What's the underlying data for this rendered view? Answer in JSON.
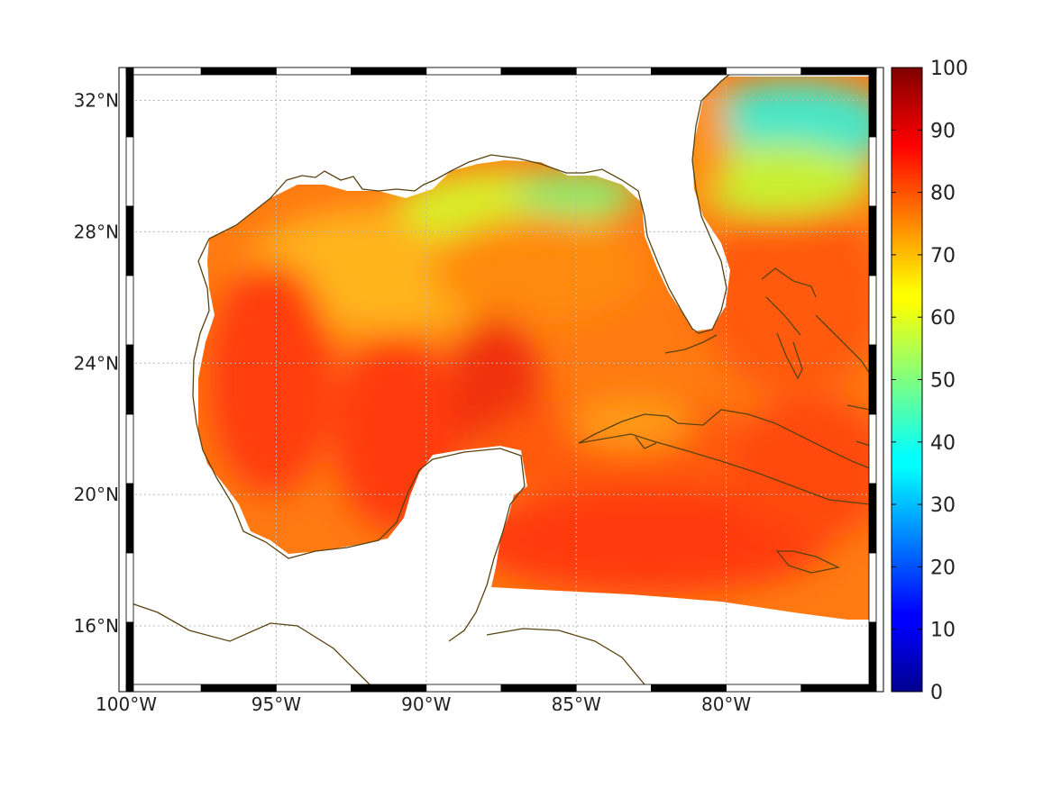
{
  "map": {
    "x_ticks": [
      "100°W",
      "95°W",
      "90°W",
      "85°W",
      "80°W"
    ],
    "y_ticks": [
      "32°N",
      "28°N",
      "24°N",
      "20°N",
      "16°N"
    ],
    "lon_values": [
      -100,
      -95,
      -90,
      -85,
      -80
    ],
    "lat_values": [
      32,
      28,
      24,
      20,
      16
    ],
    "lon_range": [
      -100,
      -75
    ],
    "lat_range": [
      14,
      33
    ],
    "grid": true,
    "colors": {
      "coastline": "#5a4210",
      "grid": "#b8b8b8",
      "frame": "#000000"
    }
  },
  "colorbar": {
    "colormap": "jet",
    "range": [
      0,
      100
    ],
    "tick_values": [
      0,
      10,
      20,
      30,
      40,
      50,
      60,
      70,
      80,
      90,
      100
    ],
    "ticks": [
      "100",
      "90",
      "80",
      "70",
      "60",
      "50",
      "40",
      "30",
      "20",
      "10",
      "0"
    ]
  }
}
